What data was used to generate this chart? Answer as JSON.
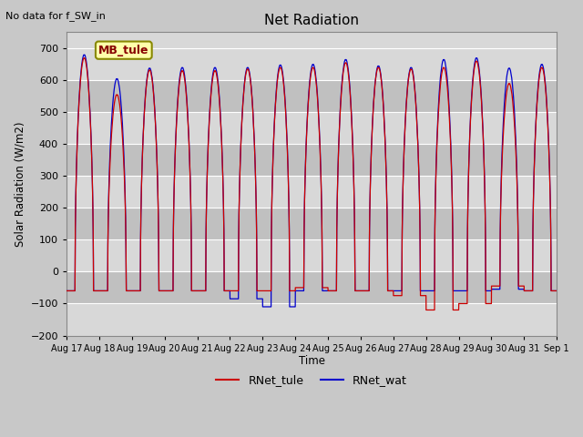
{
  "title": "Net Radiation",
  "no_data_text": "No data for f_SW_in",
  "xlabel": "Time",
  "ylabel": "Solar Radiation (W/m2)",
  "ylim": [
    -200,
    750
  ],
  "yticks": [
    -200,
    -100,
    0,
    100,
    200,
    300,
    400,
    500,
    600,
    700
  ],
  "bg_color": "#c8c8c8",
  "plot_bg_color": "#d8d8d8",
  "line1_color": "#cc0000",
  "line2_color": "#0000cc",
  "line1_label": "RNet_tule",
  "line2_label": "RNet_wat",
  "legend_box_label": "MB_tule",
  "legend_box_facecolor": "#ffffaa",
  "legend_box_edgecolor": "#888800",
  "days": [
    "Aug 17",
    "Aug 18",
    "Aug 19",
    "Aug 20",
    "Aug 21",
    "Aug 22",
    "Aug 23",
    "Aug 24",
    "Aug 25",
    "Aug 26",
    "Aug 27",
    "Aug 28",
    "Aug 29",
    "Aug 30",
    "Aug 31",
    "Sep 1"
  ],
  "n_days": 15,
  "start_day": 17,
  "night_value_tule": -60,
  "night_value_wat": -60,
  "day_peaks_tule": [
    670,
    555,
    632,
    630,
    630,
    635,
    640,
    640,
    655,
    640,
    635,
    640,
    660,
    590,
    640
  ],
  "day_peaks_wat": [
    680,
    605,
    638,
    640,
    640,
    640,
    648,
    650,
    665,
    645,
    640,
    665,
    670,
    638,
    650
  ],
  "special_tule_night": {
    "24": -50,
    "27": -75,
    "28": -120,
    "29": -100,
    "30": -45
  },
  "special_wat_night": {
    "22": -85,
    "23": -110,
    "30": -55
  },
  "grid_band_color1": "#d8d8d8",
  "grid_band_color2": "#c0c0c0",
  "grid_line_color": "#ffffff"
}
